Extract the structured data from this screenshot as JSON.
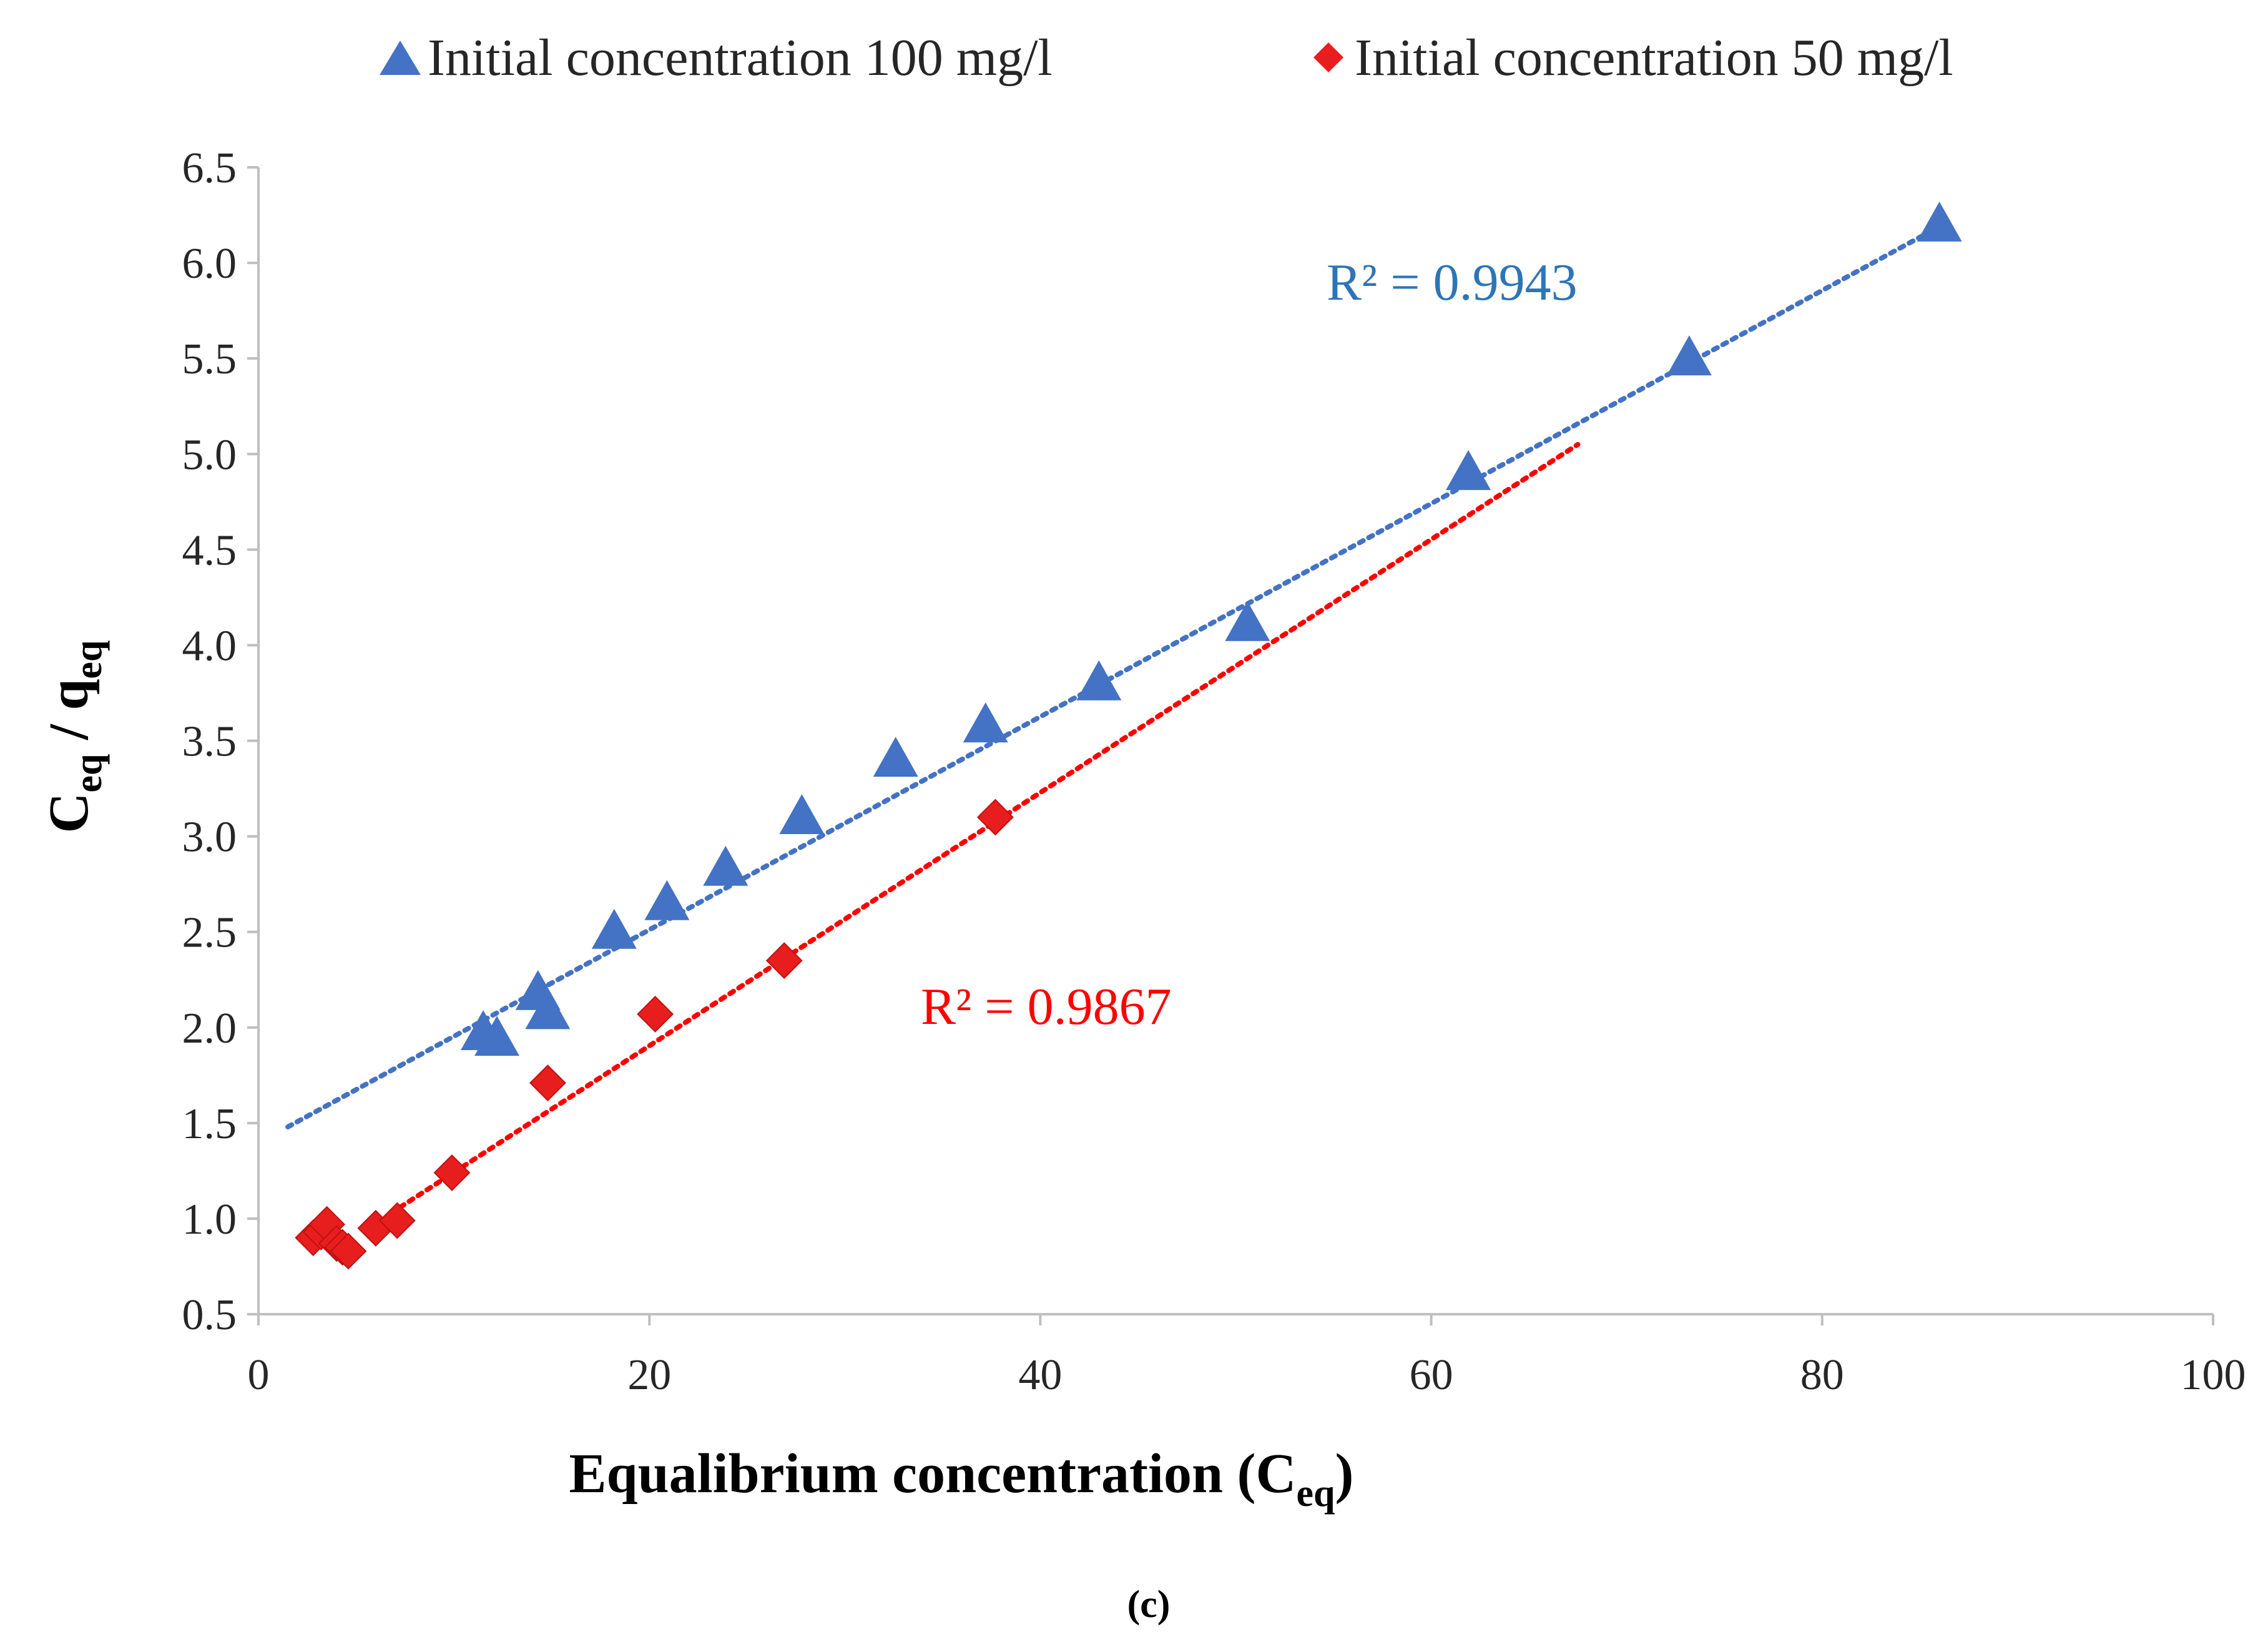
{
  "chart_data": {
    "type": "scatter",
    "caption": "(c)",
    "xlabel": "Equalibrium concentration (C",
    "xlabel_sub": "eq",
    "xlabel_end": ")",
    "ylabel": "C",
    "ylabel_sub1": "eq",
    "ylabel_mid": " / q",
    "ylabel_sub2": "eq",
    "xlim": [
      0,
      100
    ],
    "ylim": [
      0.5,
      6.5
    ],
    "x_ticks": [
      "0",
      "20",
      "40",
      "60",
      "80",
      "100"
    ],
    "y_ticks": [
      "0.5",
      "1.0",
      "1.5",
      "2.0",
      "2.5",
      "3.0",
      "3.5",
      "4.0",
      "4.5",
      "5.0",
      "5.5",
      "6.0",
      "6.5"
    ],
    "legend_position": "top",
    "series": [
      {
        "name": "Initial concentration 100 mg/l",
        "color": "#4472C4",
        "trend_color": "#4472C4",
        "marker": "triangle",
        "x": [
          11.5,
          12.2,
          14.3,
          14.8,
          18.2,
          20.9,
          23.9,
          27.8,
          32.6,
          37.2,
          43.0,
          50.6,
          61.9,
          73.2,
          86.0
        ],
        "y": [
          1.96,
          1.93,
          2.17,
          2.07,
          2.49,
          2.64,
          2.82,
          3.09,
          3.39,
          3.57,
          3.79,
          4.1,
          4.89,
          5.49,
          6.19
        ],
        "trendline": {
          "x_start": 1.5,
          "x_end": 86.0,
          "y_start": 1.48,
          "y_end": 6.19
        },
        "r2_label": "R² = 0.9943"
      },
      {
        "name": "Initial concentration 50 mg/l",
        "color": "#E81E1E",
        "trend_color": "#FF0000",
        "marker": "diamond",
        "x": [
          2.8,
          3.2,
          3.5,
          4.0,
          4.3,
          4.6,
          6.0,
          7.1,
          9.9,
          14.8,
          20.3,
          26.9,
          37.7
        ],
        "y": [
          0.9,
          0.93,
          0.97,
          0.87,
          0.85,
          0.83,
          0.95,
          0.99,
          1.24,
          1.71,
          2.07,
          2.35,
          3.1
        ],
        "trendline": {
          "x_start": 6.8,
          "x_end": 67.5,
          "y_start": 1.03,
          "y_end": 5.05
        },
        "r2_label": "R² = 0.9867"
      }
    ]
  }
}
